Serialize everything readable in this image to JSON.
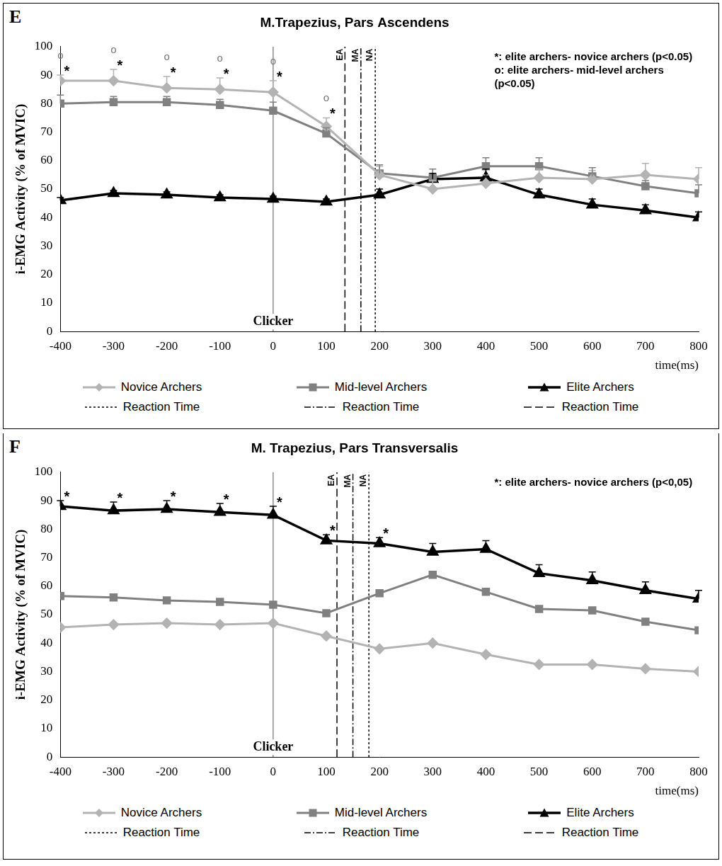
{
  "chart_data": [
    {
      "panel": "E",
      "type": "line",
      "title": "M.Trapezius, Pars Ascendens",
      "x_label": "time(ms)",
      "y_label": "i-EMG Activity (% of MVIC)",
      "x": [
        -400,
        -300,
        -200,
        -100,
        0,
        100,
        200,
        300,
        400,
        500,
        600,
        700,
        800
      ],
      "xlim": [
        -400,
        800
      ],
      "xticks": [
        -400,
        -300,
        -200,
        -100,
        0,
        100,
        200,
        300,
        400,
        500,
        600,
        700,
        800
      ],
      "ylim": [
        0,
        100
      ],
      "yticks": [
        0,
        10,
        20,
        30,
        40,
        50,
        60,
        70,
        80,
        90,
        100
      ],
      "grid": false,
      "legend": "bottom",
      "series": [
        {
          "name": "Novice Archers",
          "color": "#b3b3b3",
          "marker": "diamond",
          "values": [
            88,
            88,
            85.5,
            85,
            84,
            72,
            55,
            50,
            52,
            54,
            53.5,
            55,
            53.5
          ],
          "errors": [
            2,
            4,
            4,
            4,
            4,
            3,
            3,
            3,
            3,
            3,
            3,
            4,
            4
          ]
        },
        {
          "name": "Mid-level Archers",
          "color": "#808080",
          "marker": "square",
          "values": [
            80,
            80.5,
            80.5,
            79.5,
            77.5,
            69.5,
            55.5,
            54,
            58,
            58,
            54.5,
            51,
            48.5
          ],
          "errors": [
            3,
            2,
            2,
            2,
            3,
            2,
            3,
            3,
            3,
            3,
            3,
            2,
            3
          ]
        },
        {
          "name": "Elite Archers",
          "color": "#000000",
          "marker": "triangle",
          "values": [
            46,
            48.5,
            48,
            47,
            46.5,
            45.5,
            48,
            53.5,
            54,
            48,
            44.5,
            42.5,
            40
          ],
          "errors": [
            1,
            1,
            1,
            1,
            1,
            1,
            2,
            2,
            3,
            2,
            2,
            2,
            2
          ]
        }
      ],
      "clicker": {
        "label": "Clicker",
        "x": 0
      },
      "reaction_times": [
        {
          "name": "Reaction Time",
          "label": "NA",
          "x": 192,
          "line_style": "dotted"
        },
        {
          "name": "Reaction Time",
          "label": "MA",
          "x": 165,
          "line_style": "dashdot"
        },
        {
          "name": "Reaction Time",
          "label": "EA",
          "x": 135,
          "line_style": "dashed"
        }
      ],
      "significance": [
        {
          "x": -400,
          "marks": [
            "*",
            "o"
          ]
        },
        {
          "x": -300,
          "marks": [
            "*",
            "o"
          ]
        },
        {
          "x": -200,
          "marks": [
            "*",
            "o"
          ]
        },
        {
          "x": -100,
          "marks": [
            "*",
            "o"
          ]
        },
        {
          "x": 0,
          "marks": [
            "*",
            "o"
          ]
        },
        {
          "x": 100,
          "marks": [
            "*",
            "o"
          ]
        }
      ],
      "annotations": [
        "*: elite archers- novice archers (p<0.05)",
        "o: elite archers- mid-level archers (p<0.05)"
      ]
    },
    {
      "panel": "F",
      "type": "line",
      "title": "M. Trapezius, Pars Transversalis",
      "x_label": "time(ms)",
      "y_label": "i-EMG Activity (% of MVIC)",
      "x": [
        -400,
        -300,
        -200,
        -100,
        0,
        100,
        200,
        300,
        400,
        500,
        600,
        700,
        800
      ],
      "xlim": [
        -400,
        800
      ],
      "xticks": [
        -400,
        -300,
        -200,
        -100,
        0,
        100,
        200,
        300,
        400,
        500,
        600,
        700,
        800
      ],
      "ylim": [
        0,
        100
      ],
      "yticks": [
        0,
        10,
        20,
        30,
        40,
        50,
        60,
        70,
        80,
        90,
        100
      ],
      "grid": false,
      "legend": "bottom",
      "series": [
        {
          "name": "Novice Archers",
          "color": "#b3b3b3",
          "marker": "diamond",
          "values": [
            45.5,
            46.5,
            47,
            46.5,
            47,
            42.5,
            38,
            40,
            36,
            32.5,
            32.5,
            31,
            30
          ]
        },
        {
          "name": "Mid-level Archers",
          "color": "#808080",
          "marker": "square",
          "values": [
            56.5,
            56,
            55,
            54.5,
            53.5,
            50.5,
            57.5,
            64,
            58,
            52,
            51.5,
            47.5,
            44.5
          ]
        },
        {
          "name": "Elite Archers",
          "color": "#000000",
          "marker": "triangle",
          "values": [
            88,
            86.5,
            87,
            86,
            85,
            76,
            75,
            72,
            73,
            64.5,
            62,
            58.5,
            55.5
          ],
          "errors": [
            2,
            3,
            3,
            3,
            3,
            2,
            2,
            3,
            3,
            3,
            3,
            3,
            3
          ]
        }
      ],
      "clicker": {
        "label": "Clicker",
        "x": 0
      },
      "reaction_times": [
        {
          "name": "Reaction Time",
          "label": "NA",
          "x": 180,
          "line_style": "dotted"
        },
        {
          "name": "Reaction Time",
          "label": "MA",
          "x": 150,
          "line_style": "dashdot"
        },
        {
          "name": "Reaction Time",
          "label": "EA",
          "x": 120,
          "line_style": "dashed"
        }
      ],
      "significance": [
        {
          "x": -400,
          "marks": [
            "*"
          ]
        },
        {
          "x": -300,
          "marks": [
            "*"
          ]
        },
        {
          "x": -200,
          "marks": [
            "*"
          ]
        },
        {
          "x": -100,
          "marks": [
            "*"
          ]
        },
        {
          "x": 0,
          "marks": [
            "*"
          ]
        },
        {
          "x": 100,
          "marks": [
            "*"
          ]
        },
        {
          "x": 200,
          "marks": [
            "*"
          ]
        }
      ],
      "annotations": [
        "*: elite archers- novice archers (p<0,05)"
      ]
    }
  ]
}
